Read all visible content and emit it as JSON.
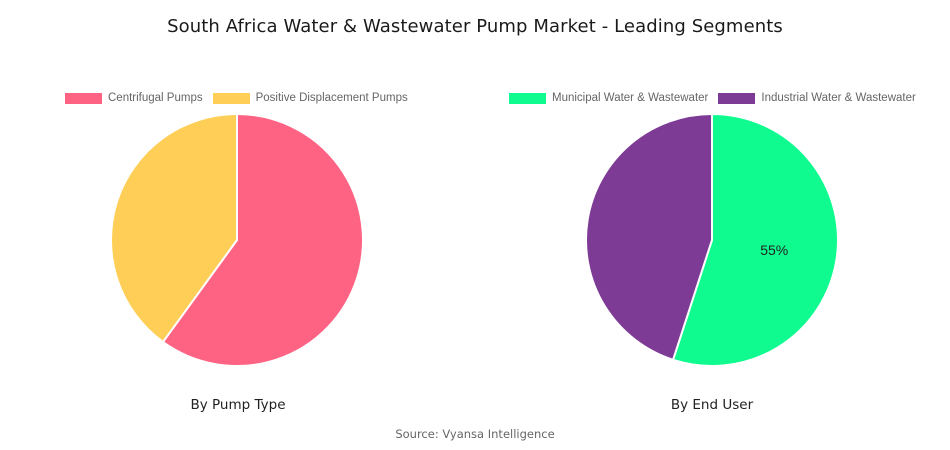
{
  "title": "South Africa Water & Wastewater Pump Market - Leading Segments",
  "source": "Source: Vyansa Intelligence",
  "chart_data": [
    {
      "type": "pie",
      "xlabel": "By Pump Type",
      "legend_position": "top",
      "categories": [
        "Centrifugal Pumps",
        "Positive Displacement Pumps"
      ],
      "values": [
        60,
        40
      ],
      "colors": [
        "#FF6384",
        "#FFCE56"
      ],
      "data_labels": [
        "",
        ""
      ]
    },
    {
      "type": "pie",
      "xlabel": "By End User",
      "legend_position": "top",
      "categories": [
        "Municipal Water & Wastewater",
        "Industrial Water & Wastewater"
      ],
      "values": [
        55,
        45
      ],
      "colors": [
        "#10FB8F",
        "#7E3B96"
      ],
      "data_labels": [
        "55%",
        ""
      ]
    }
  ]
}
